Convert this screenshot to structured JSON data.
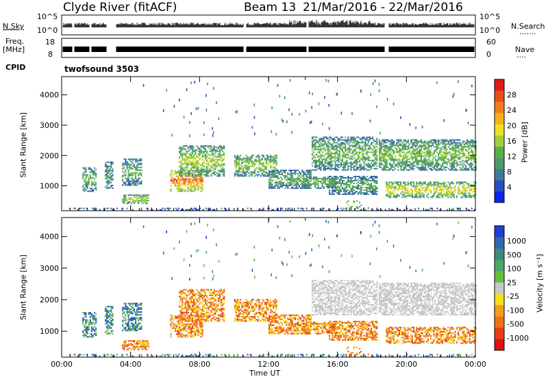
{
  "header": {
    "station": "Clyde River (fitACF)",
    "beam": "Beam 13",
    "date_range": "21/Mar/2016 - 22/Mar/2016"
  },
  "top_panels": {
    "nsky_label": "N.Sky",
    "nsky_ticks": [
      "10^5",
      "10^0"
    ],
    "freq_label_1": "Freq.",
    "freq_label_2": "[MHz]",
    "freq_ticks": [
      "18",
      "8"
    ],
    "cpid_label": "CPID",
    "nsearch_label": "N.Search",
    "nsearch_ticks": [
      "10^5",
      "10^0"
    ],
    "nave_label": "Nave",
    "nave_ticks": [
      "60",
      "0"
    ],
    "cpid_value": "twofsound 3503",
    "dotted_marker": "·······",
    "dotted_marker_short": "····"
  },
  "chart_data": [
    {
      "type": "heatmap",
      "title": "Power",
      "xlabel": "Time UT",
      "ylabel": "Slant Range [km]",
      "xlim": [
        "00:00",
        "24:00"
      ],
      "ylim": [
        180,
        4600
      ],
      "x_ticks": [
        "00:00",
        "04:00",
        "08:00",
        "12:00",
        "16:00",
        "20:00",
        "00:00"
      ],
      "y_ticks": [
        1000,
        2000,
        3000,
        4000
      ],
      "colorbar": {
        "label": "Power [dB]",
        "ticks": [
          4,
          8,
          12,
          16,
          20,
          24,
          28
        ],
        "range": [
          0,
          32
        ],
        "colors": [
          "#0c24e8",
          "#2a4fc0",
          "#3f7a98",
          "#4f9a6a",
          "#56b04a",
          "#9fd040",
          "#f2e020",
          "#f5b21c",
          "#f0801c",
          "#e94f1a",
          "#e01a1a"
        ]
      }
    },
    {
      "type": "heatmap",
      "title": "Velocity",
      "xlabel": "Time UT",
      "ylabel": "Slant Range [km]",
      "xlim": [
        "00:00",
        "24:00"
      ],
      "ylim": [
        180,
        4600
      ],
      "x_ticks": [
        "00:00",
        "04:00",
        "08:00",
        "12:00",
        "16:00",
        "20:00",
        "00:00"
      ],
      "y_ticks": [
        1000,
        2000,
        3000,
        4000
      ],
      "colorbar": {
        "label": "Velocity [m s⁻¹]",
        "ticks": [
          "1000",
          "500",
          "100",
          "25",
          "-25",
          "-100",
          "-500",
          "-1000"
        ],
        "colors": [
          "#1f3fd0",
          "#2f6ab0",
          "#3d8a7a",
          "#4aa86a",
          "#66c040",
          "#c8c8c8",
          "#f2e018",
          "#f0a01c",
          "#f07018",
          "#e83e18",
          "#e01010"
        ]
      }
    }
  ]
}
